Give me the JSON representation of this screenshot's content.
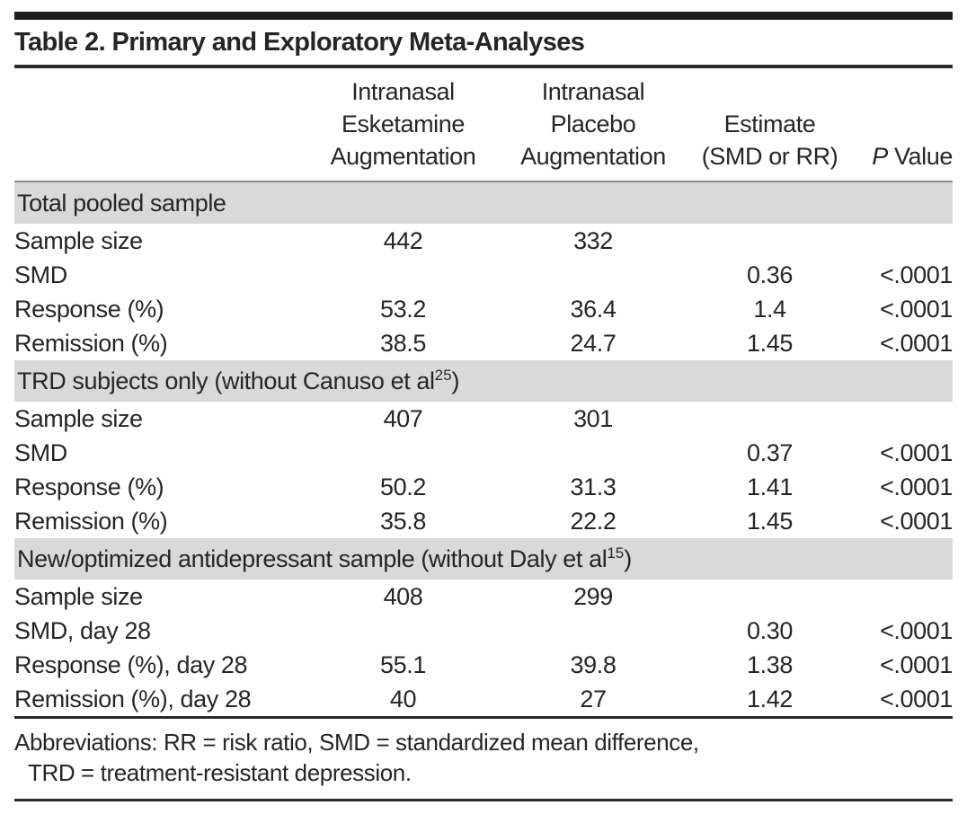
{
  "title": "Table 2. Primary and Exploratory Meta-Analyses",
  "header": {
    "col_esketamine": [
      "Intranasal",
      "Esketamine",
      "Augmentation"
    ],
    "col_placebo": [
      "Intranasal",
      "Placebo",
      "Augmentation"
    ],
    "col_estimate": [
      "Estimate",
      "(SMD or RR)"
    ],
    "col_pvalue": {
      "italic": "P",
      "rest": " Value"
    }
  },
  "sections": [
    {
      "header": {
        "text": "Total pooled sample",
        "sup": "",
        "close": ""
      },
      "rows": [
        {
          "label": "Sample size",
          "esketamine": "442",
          "placebo": "332",
          "estimate": "",
          "p": ""
        },
        {
          "label": "SMD",
          "esketamine": "",
          "placebo": "",
          "estimate": "0.36",
          "p": "<.0001"
        },
        {
          "label": "Response (%)",
          "esketamine": "53.2",
          "placebo": "36.4",
          "estimate": "1.4",
          "p": "<.0001"
        },
        {
          "label": "Remission (%)",
          "esketamine": "38.5",
          "placebo": "24.7",
          "estimate": "1.45",
          "p": "<.0001"
        }
      ]
    },
    {
      "header": {
        "text": "TRD subjects only (without Canuso et al",
        "sup": "25",
        "close": ")"
      },
      "rows": [
        {
          "label": "Sample size",
          "esketamine": "407",
          "placebo": "301",
          "estimate": "",
          "p": ""
        },
        {
          "label": "SMD",
          "esketamine": "",
          "placebo": "",
          "estimate": "0.37",
          "p": "<.0001"
        },
        {
          "label": "Response (%)",
          "esketamine": "50.2",
          "placebo": "31.3",
          "estimate": "1.41",
          "p": "<.0001"
        },
        {
          "label": "Remission (%)",
          "esketamine": "35.8",
          "placebo": "22.2",
          "estimate": "1.45",
          "p": "<.0001"
        }
      ]
    },
    {
      "header": {
        "text": "New/optimized antidepressant sample (without Daly et al",
        "sup": "15",
        "close": ")"
      },
      "rows": [
        {
          "label": "Sample size",
          "esketamine": "408",
          "placebo": "299",
          "estimate": "",
          "p": ""
        },
        {
          "label": "SMD, day 28",
          "esketamine": "",
          "placebo": "",
          "estimate": "0.30",
          "p": "<.0001"
        },
        {
          "label": "Response (%), day 28",
          "esketamine": "55.1",
          "placebo": "39.8",
          "estimate": "1.38",
          "p": "<.0001"
        },
        {
          "label": "Remission (%), day 28",
          "esketamine": "40",
          "placebo": "27",
          "estimate": "1.42",
          "p": "<.0001"
        }
      ]
    }
  ],
  "footnotes": [
    "Abbreviations: RR = risk ratio, SMD = standardized mean difference,",
    "TRD = treatment-resistant depression."
  ]
}
